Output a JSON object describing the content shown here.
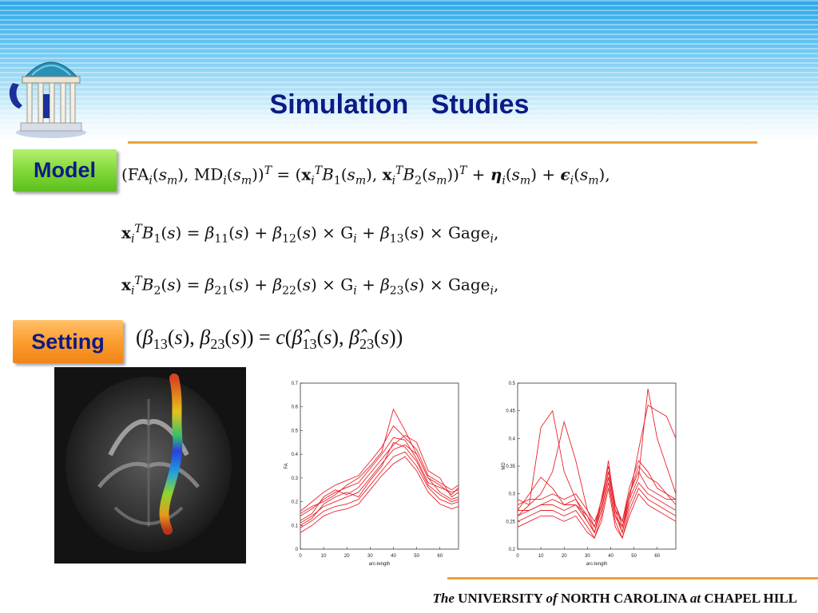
{
  "slide": {
    "title": "Simulation   Studies",
    "model_label": "Model",
    "setting_label": "Setting"
  },
  "equations": {
    "model": "(FA_i(s_m), MD_i(s_m))^T = (x_i^T B_1(s_m), x_i^T B_2(s_m))^T + η_i(s_m) + ε_i(s_m),",
    "b1": "x_i^T B_1(s) = β_11(s) + β_12(s) × G_i + β_13(s) × Gage_i,",
    "b2": "x_i^T B_2(s) = β_21(s) + β_22(s) × G_i + β_23(s) × Gage_i,",
    "setting": "(β_13(s), β_23(s)) = c(β̂_13(s), β̂_23(s))"
  },
  "footer": {
    "the": "The",
    "university": "UNIVERSITY",
    "of": "of",
    "state": "NORTH CAROLINA",
    "at": "at",
    "campus": "CHAPEL HILL"
  },
  "colors": {
    "title": "#0d1a86",
    "rule": "#e8a33c",
    "model_tag": "#7ed634",
    "setting_tag": "#fb9b2a",
    "curve": "#e8222a"
  },
  "chart_data": [
    {
      "type": "line",
      "xlabel": "arc-length",
      "ylabel": "FA",
      "xlim": [
        0,
        68
      ],
      "ylim": [
        0,
        0.7
      ],
      "xticks": [
        "0",
        "10",
        "20",
        "30",
        "40",
        "50",
        "60"
      ],
      "yticks": [
        "0",
        "0.1",
        "0.2",
        "0.3",
        "0.4",
        "0.5",
        "0.6",
        "0.7"
      ],
      "series": [
        {
          "x": [
            0,
            5,
            10,
            15,
            20,
            25,
            30,
            35,
            40,
            45,
            50,
            55,
            60,
            65,
            68
          ],
          "values": [
            0.11,
            0.14,
            0.18,
            0.2,
            0.22,
            0.24,
            0.3,
            0.36,
            0.42,
            0.44,
            0.4,
            0.3,
            0.24,
            0.21,
            0.22
          ]
        },
        {
          "x": [
            0,
            5,
            10,
            15,
            20,
            25,
            30,
            35,
            40,
            45,
            50,
            55,
            60,
            65,
            68
          ],
          "values": [
            0.14,
            0.17,
            0.21,
            0.24,
            0.26,
            0.28,
            0.34,
            0.4,
            0.47,
            0.46,
            0.38,
            0.28,
            0.26,
            0.24,
            0.25
          ]
        },
        {
          "x": [
            0,
            5,
            10,
            15,
            20,
            25,
            30,
            35,
            40,
            45,
            50,
            55,
            60,
            65,
            68
          ],
          "values": [
            0.09,
            0.12,
            0.16,
            0.18,
            0.19,
            0.21,
            0.27,
            0.33,
            0.39,
            0.41,
            0.35,
            0.26,
            0.21,
            0.19,
            0.2
          ]
        },
        {
          "x": [
            0,
            5,
            10,
            15,
            20,
            25,
            30,
            35,
            40,
            45,
            50,
            55,
            60,
            65,
            68
          ],
          "values": [
            0.16,
            0.2,
            0.24,
            0.27,
            0.29,
            0.31,
            0.37,
            0.43,
            0.52,
            0.47,
            0.42,
            0.31,
            0.28,
            0.25,
            0.27
          ]
        },
        {
          "x": [
            0,
            5,
            10,
            15,
            20,
            25,
            30,
            35,
            40,
            45,
            50,
            55,
            60,
            65,
            68
          ],
          "values": [
            0.07,
            0.1,
            0.14,
            0.16,
            0.17,
            0.19,
            0.25,
            0.31,
            0.36,
            0.39,
            0.33,
            0.24,
            0.19,
            0.17,
            0.18
          ]
        },
        {
          "x": [
            0,
            5,
            10,
            15,
            20,
            25,
            30,
            35,
            40,
            45,
            50,
            55,
            60,
            65,
            68
          ],
          "values": [
            0.12,
            0.15,
            0.22,
            0.25,
            0.23,
            0.26,
            0.32,
            0.38,
            0.44,
            0.48,
            0.45,
            0.33,
            0.3,
            0.22,
            0.24
          ]
        },
        {
          "x": [
            0,
            5,
            10,
            15,
            20,
            25,
            30,
            35,
            40,
            45,
            50,
            55,
            60,
            65,
            68
          ],
          "values": [
            0.1,
            0.13,
            0.19,
            0.22,
            0.24,
            0.22,
            0.29,
            0.35,
            0.45,
            0.43,
            0.37,
            0.27,
            0.23,
            0.2,
            0.21
          ]
        },
        {
          "x": [
            0,
            5,
            10,
            15,
            20,
            25,
            30,
            35,
            40,
            45,
            50,
            55,
            60,
            65,
            68
          ],
          "values": [
            0.15,
            0.18,
            0.2,
            0.23,
            0.27,
            0.3,
            0.35,
            0.41,
            0.59,
            0.5,
            0.4,
            0.3,
            0.27,
            0.23,
            0.26
          ]
        }
      ]
    },
    {
      "type": "line",
      "xlabel": "arc-length",
      "ylabel": "MD",
      "xlim": [
        0,
        68
      ],
      "ylim": [
        0.2,
        0.5
      ],
      "xticks": [
        "0",
        "10",
        "20",
        "30",
        "40",
        "50",
        "60"
      ],
      "yticks": [
        "0.2",
        "0.25",
        "0.3",
        "0.35",
        "0.4",
        "0.45",
        "0.5"
      ],
      "series": [
        {
          "x": [
            0,
            5,
            10,
            15,
            20,
            25,
            30,
            33,
            36,
            39,
            42,
            45,
            48,
            52,
            56,
            60,
            64,
            68
          ],
          "values": [
            0.26,
            0.27,
            0.28,
            0.28,
            0.27,
            0.28,
            0.25,
            0.23,
            0.27,
            0.33,
            0.26,
            0.23,
            0.28,
            0.32,
            0.3,
            0.29,
            0.28,
            0.27
          ]
        },
        {
          "x": [
            0,
            5,
            10,
            15,
            20,
            25,
            30,
            33,
            36,
            39,
            42,
            45,
            48,
            52,
            56,
            60,
            64,
            68
          ],
          "values": [
            0.28,
            0.29,
            0.29,
            0.3,
            0.29,
            0.3,
            0.27,
            0.24,
            0.29,
            0.35,
            0.28,
            0.24,
            0.3,
            0.34,
            0.31,
            0.3,
            0.29,
            0.29
          ]
        },
        {
          "x": [
            0,
            5,
            10,
            15,
            20,
            25,
            30,
            33,
            36,
            39,
            42,
            45,
            48,
            52,
            56,
            60,
            64,
            68
          ],
          "values": [
            0.25,
            0.26,
            0.27,
            0.27,
            0.26,
            0.27,
            0.24,
            0.22,
            0.26,
            0.32,
            0.25,
            0.22,
            0.27,
            0.31,
            0.29,
            0.28,
            0.27,
            0.26
          ]
        },
        {
          "x": [
            0,
            5,
            10,
            15,
            20,
            25,
            30,
            33,
            36,
            39,
            42,
            45,
            48,
            52,
            56,
            60,
            64,
            68
          ],
          "values": [
            0.27,
            0.3,
            0.33,
            0.31,
            0.28,
            0.29,
            0.26,
            0.24,
            0.28,
            0.34,
            0.27,
            0.25,
            0.31,
            0.36,
            0.34,
            0.31,
            0.3,
            0.28
          ]
        },
        {
          "x": [
            0,
            5,
            10,
            15,
            20,
            25,
            30,
            33,
            36,
            39,
            42,
            45,
            48,
            52,
            56,
            60,
            64,
            68
          ],
          "values": [
            0.26,
            0.28,
            0.42,
            0.45,
            0.34,
            0.29,
            0.25,
            0.23,
            0.27,
            0.33,
            0.26,
            0.24,
            0.29,
            0.38,
            0.46,
            0.45,
            0.44,
            0.4
          ]
        },
        {
          "x": [
            0,
            5,
            10,
            15,
            20,
            25,
            30,
            33,
            36,
            39,
            42,
            45,
            48,
            52,
            56,
            60,
            64,
            68
          ],
          "values": [
            0.29,
            0.28,
            0.3,
            0.34,
            0.43,
            0.36,
            0.27,
            0.25,
            0.28,
            0.34,
            0.28,
            0.25,
            0.3,
            0.35,
            0.33,
            0.32,
            0.3,
            0.29
          ]
        },
        {
          "x": [
            0,
            5,
            10,
            15,
            20,
            25,
            30,
            33,
            36,
            39,
            42,
            45,
            48,
            52,
            56,
            60,
            64,
            68
          ],
          "values": [
            0.27,
            0.27,
            0.28,
            0.29,
            0.28,
            0.28,
            0.26,
            0.23,
            0.28,
            0.36,
            0.27,
            0.23,
            0.29,
            0.33,
            0.49,
            0.4,
            0.35,
            0.3
          ]
        },
        {
          "x": [
            0,
            5,
            10,
            15,
            20,
            25,
            30,
            33,
            36,
            39,
            42,
            45,
            48,
            52,
            56,
            60,
            64,
            68
          ],
          "values": [
            0.24,
            0.25,
            0.26,
            0.26,
            0.25,
            0.26,
            0.23,
            0.22,
            0.25,
            0.31,
            0.24,
            0.22,
            0.26,
            0.3,
            0.28,
            0.27,
            0.26,
            0.25
          ]
        }
      ]
    }
  ]
}
